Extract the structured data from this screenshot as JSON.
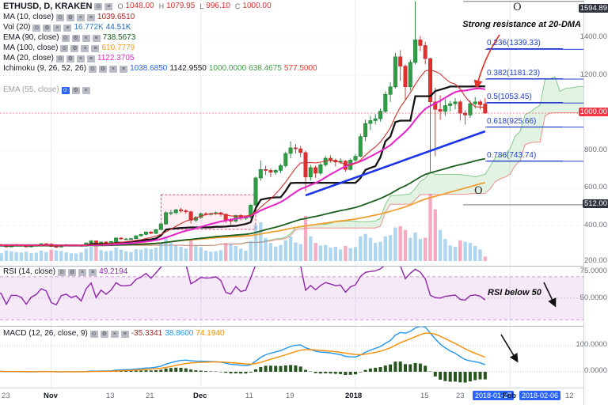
{
  "symbol_bar": {
    "title": "ETHUSD, D, KRAKEN",
    "o_label": "O",
    "o": "1048.00",
    "h_label": "H",
    "h": "1079.95",
    "l_label": "L",
    "l": "996.10",
    "c_label": "C",
    "c": "1000.00",
    "value_color": "#e03131"
  },
  "legends": [
    {
      "label": "MA (10, close)",
      "values": [
        "1039.6510"
      ],
      "colors": [
        "#b22222"
      ]
    },
    {
      "label": "Vol (20)",
      "values": [
        "16.772K",
        "44.51K"
      ],
      "colors": [
        "#2e7cd6",
        "#1565c0"
      ]
    },
    {
      "label": "EMA (90, close)",
      "values": [
        "738.5673"
      ],
      "colors": [
        "#1b5e20"
      ]
    },
    {
      "label": "MA (100, close)",
      "values": [
        "610.7779"
      ],
      "colors": [
        "#f0a030"
      ]
    },
    {
      "label": "MA (20, close)",
      "values": [
        "1122.3705"
      ],
      "colors": [
        "#e628c9"
      ]
    },
    {
      "label": "Ichimoku (9, 26, 52, 26)",
      "values": [
        "1038.6850",
        "1142.9550",
        "1000.0000",
        "638.4675",
        "577.5000"
      ],
      "colors": [
        "#2962ff",
        "#131722",
        "#43a047",
        "#43a047",
        "#e53935"
      ]
    },
    {
      "label": "EMA (55, close)",
      "values": [],
      "colors": []
    }
  ],
  "rsi_legend": {
    "label": "RSI (14, close)",
    "value": "49.2194",
    "color": "#8e24aa"
  },
  "macd_legend": {
    "label": "MACD (12, 26, close, 9)",
    "values": [
      "-35.3341",
      "38.8600",
      "74.1940"
    ],
    "colors": [
      "#9c1f1f",
      "#2196f3",
      "#fb8c00"
    ]
  },
  "price_scale": [
    "1594.89",
    "1400.00",
    "1200.00",
    "1000.00",
    "800.00",
    "600.00",
    "512.00",
    "400.00",
    "200.00",
    "75.0000",
    "50.0000",
    "100.0000",
    "0.0000"
  ],
  "time_axis": [
    "23",
    "Nov",
    "13",
    "21",
    "Dec",
    "11",
    "19",
    "2018",
    "15",
    "23",
    "2018-01-27",
    "Feb",
    "2018-02-06",
    "12"
  ],
  "fib_labels": [
    "0.236(1339.33)",
    "0.382(1181.23)",
    "0.5(1053.45)",
    "0.618(925.66)",
    "0.786(743.74)"
  ],
  "annotations": {
    "resistance": "Strong resistance at 20-DMA",
    "rsi": "RSI below 50",
    "o": "O"
  },
  "chart_data": {
    "type": "candlestick",
    "symbol": "ETHUSD",
    "interval": "D",
    "exchange": "KRAKEN",
    "last_candle_ohlc": [
      1048.0,
      1079.95,
      996.1,
      1000.0
    ],
    "last_price": 1000.0,
    "indicator_values": {
      "ma10": 1039.651,
      "vol": "16.772K",
      "vol_ma": "44.51K",
      "ema90": 738.5673,
      "ma100": 610.7779,
      "ma20": 1122.3705,
      "ichimoku": [
        1038.685,
        1142.955,
        1000.0,
        638.4675,
        577.5
      ],
      "rsi": 49.2194,
      "macd": [
        -35.3341,
        38.86,
        74.194
      ]
    },
    "price_gridlines": [
      1400,
      1200,
      1000,
      800,
      600,
      400,
      200
    ],
    "month_tick_indices": [
      29,
      59,
      90,
      121
    ],
    "fib_levels": [
      {
        "level": 0.236,
        "price": 1339.33
      },
      {
        "level": 0.382,
        "price": 1181.23
      },
      {
        "level": 0.5,
        "price": 1053.45
      },
      {
        "level": 0.618,
        "price": 925.66
      },
      {
        "level": 0.786,
        "price": 743.74
      }
    ],
    "fib_range": {
      "high": 1594.89,
      "low": 512.0
    },
    "trendline": {
      "i1": 80,
      "p1": 562,
      "i2": 116,
      "p2": 903
    },
    "highlight_box": {
      "i1": 51,
      "i2": 70,
      "p1": 566,
      "p2": 381
    },
    "rsi_band": [
      30,
      70
    ],
    "rsi_gridlines": [
      75,
      50
    ],
    "macd_gridlines": [
      100,
      0
    ],
    "candles": [
      [
        296,
        301,
        288,
        292,
        45
      ],
      [
        292,
        295,
        285,
        287,
        38
      ],
      [
        287,
        294,
        284,
        291,
        35
      ],
      [
        291,
        300,
        289,
        296,
        40
      ],
      [
        296,
        309,
        294,
        306,
        52
      ],
      [
        306,
        310,
        298,
        300,
        44
      ],
      [
        300,
        304,
        294,
        297,
        36
      ],
      [
        297,
        302,
        292,
        295,
        33
      ],
      [
        295,
        299,
        290,
        293,
        31
      ],
      [
        293,
        303,
        291,
        300,
        42
      ],
      [
        300,
        306,
        296,
        302,
        39
      ],
      [
        302,
        305,
        296,
        299,
        34
      ],
      [
        299,
        303,
        294,
        297,
        30
      ],
      [
        297,
        301,
        292,
        295,
        29
      ],
      [
        295,
        300,
        290,
        293,
        28
      ],
      [
        293,
        299,
        289,
        296,
        31
      ],
      [
        296,
        302,
        293,
        299,
        33
      ],
      [
        299,
        305,
        295,
        302,
        36
      ],
      [
        302,
        306,
        297,
        300,
        32
      ],
      [
        300,
        304,
        295,
        298,
        30
      ],
      [
        298,
        302,
        284,
        288,
        41
      ],
      [
        288,
        299,
        286,
        297,
        38
      ],
      [
        297,
        302,
        292,
        297,
        35
      ],
      [
        297,
        300,
        290,
        295,
        33
      ],
      [
        295,
        297,
        285,
        288,
        36
      ],
      [
        288,
        297,
        286,
        295,
        30
      ],
      [
        295,
        302,
        292,
        298,
        32
      ],
      [
        298,
        308,
        295,
        305,
        40
      ],
      [
        305,
        308,
        298,
        303,
        35
      ],
      [
        303,
        306,
        287,
        290,
        44
      ],
      [
        290,
        293,
        282,
        287,
        42
      ],
      [
        287,
        300,
        285,
        298,
        39
      ],
      [
        298,
        304,
        294,
        300,
        34
      ],
      [
        300,
        302,
        291,
        296,
        30
      ],
      [
        296,
        302,
        293,
        298,
        29
      ],
      [
        298,
        300,
        288,
        292,
        33
      ],
      [
        292,
        311,
        290,
        309,
        48
      ],
      [
        309,
        324,
        303,
        320,
        55
      ],
      [
        320,
        322,
        295,
        299,
        60
      ],
      [
        299,
        316,
        297,
        314,
        42
      ],
      [
        314,
        318,
        303,
        307,
        38
      ],
      [
        307,
        319,
        304,
        316,
        40
      ],
      [
        316,
        338,
        314,
        335,
        52
      ],
      [
        335,
        340,
        325,
        330,
        44
      ],
      [
        330,
        336,
        324,
        330,
        38
      ],
      [
        330,
        336,
        326,
        332,
        35
      ],
      [
        332,
        350,
        330,
        347,
        46
      ],
      [
        347,
        358,
        342,
        354,
        44
      ],
      [
        354,
        370,
        350,
        367,
        50
      ],
      [
        367,
        372,
        355,
        360,
        46
      ],
      [
        360,
        383,
        356,
        380,
        52
      ],
      [
        380,
        415,
        376,
        410,
        68
      ],
      [
        410,
        478,
        405,
        470,
        95
      ],
      [
        470,
        485,
        455,
        470,
        70
      ],
      [
        470,
        490,
        462,
        485,
        60
      ],
      [
        485,
        495,
        470,
        480,
        55
      ],
      [
        480,
        488,
        465,
        475,
        48
      ],
      [
        475,
        480,
        412,
        430,
        85
      ],
      [
        430,
        452,
        420,
        445,
        58
      ],
      [
        445,
        470,
        438,
        465,
        54
      ],
      [
        465,
        472,
        455,
        463,
        40
      ],
      [
        463,
        470,
        455,
        465,
        36
      ],
      [
        465,
        476,
        458,
        470,
        38
      ],
      [
        470,
        474,
        450,
        462,
        42
      ],
      [
        462,
        465,
        415,
        430,
        70
      ],
      [
        430,
        440,
        408,
        425,
        66
      ],
      [
        425,
        460,
        418,
        455,
        58
      ],
      [
        455,
        462,
        430,
        440,
        48
      ],
      [
        440,
        452,
        432,
        445,
        40
      ],
      [
        445,
        515,
        440,
        510,
        78
      ],
      [
        510,
        662,
        505,
        655,
        140
      ],
      [
        655,
        748,
        640,
        700,
        150
      ],
      [
        700,
        720,
        670,
        695,
        90
      ],
      [
        695,
        705,
        660,
        685,
        70
      ],
      [
        685,
        702,
        672,
        695,
        56
      ],
      [
        695,
        730,
        680,
        720,
        62
      ],
      [
        720,
        795,
        710,
        785,
        80
      ],
      [
        785,
        850,
        760,
        815,
        95
      ],
      [
        815,
        835,
        785,
        810,
        72
      ],
      [
        810,
        825,
        765,
        790,
        66
      ],
      [
        790,
        800,
        585,
        660,
        175
      ],
      [
        660,
        725,
        640,
        710,
        95
      ],
      [
        710,
        720,
        655,
        680,
        70
      ],
      [
        680,
        735,
        670,
        725,
        60
      ],
      [
        725,
        772,
        715,
        760,
        62
      ],
      [
        760,
        775,
        735,
        750,
        52
      ],
      [
        750,
        758,
        715,
        740,
        55
      ],
      [
        740,
        760,
        730,
        745,
        45
      ],
      [
        745,
        750,
        688,
        700,
        58
      ],
      [
        700,
        758,
        695,
        750,
        50
      ],
      [
        750,
        782,
        740,
        770,
        54
      ],
      [
        770,
        890,
        765,
        875,
        95
      ],
      [
        875,
        965,
        850,
        945,
        105
      ],
      [
        945,
        985,
        910,
        960,
        90
      ],
      [
        960,
        995,
        940,
        970,
        70
      ],
      [
        970,
        1025,
        955,
        1010,
        75
      ],
      [
        1010,
        1115,
        1000,
        1100,
        95
      ],
      [
        1100,
        1165,
        1060,
        1140,
        100
      ],
      [
        1140,
        1320,
        1130,
        1300,
        130
      ],
      [
        1300,
        1335,
        1170,
        1250,
        135
      ],
      [
        1250,
        1260,
        1070,
        1140,
        120
      ],
      [
        1140,
        1285,
        1120,
        1270,
        90
      ],
      [
        1270,
        1594.89,
        1260,
        1390,
        110
      ],
      [
        1390,
        1410,
        1330,
        1360,
        85
      ],
      [
        1360,
        1380,
        1260,
        1290,
        90
      ],
      [
        1290,
        1295,
        690,
        1060,
        260
      ],
      [
        1060,
        1135,
        770,
        1020,
        200
      ],
      [
        1020,
        1095,
        965,
        1010,
        120
      ],
      [
        1010,
        1075,
        985,
        1040,
        85
      ],
      [
        1040,
        1065,
        1010,
        1050,
        60
      ],
      [
        1050,
        1080,
        1020,
        1060,
        55
      ],
      [
        1060,
        1070,
        960,
        1000,
        80
      ],
      [
        1000,
        1015,
        940,
        990,
        75
      ],
      [
        990,
        1068,
        975,
        1050,
        70
      ],
      [
        1050,
        1085,
        1025,
        1060,
        58
      ],
      [
        1060,
        1070,
        1020,
        1045,
        45
      ],
      [
        1048,
        1079.95,
        996.1,
        1000,
        17
      ]
    ]
  }
}
